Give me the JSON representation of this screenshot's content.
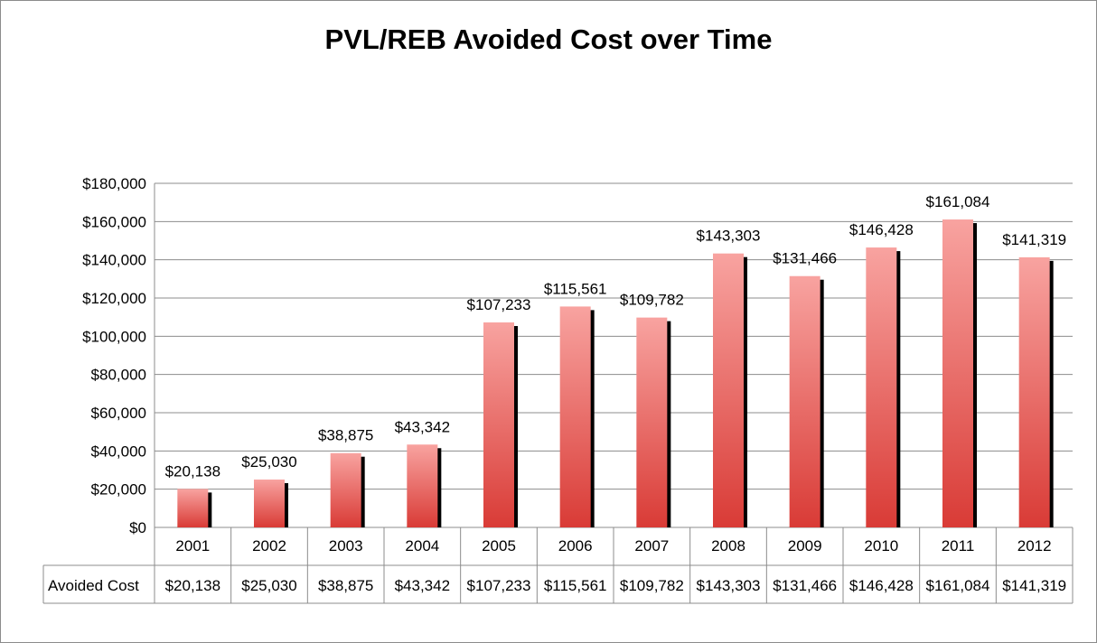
{
  "chart_data": {
    "type": "bar",
    "title": "PVL/REB Avoided Cost over Time",
    "categories": [
      "2001",
      "2002",
      "2003",
      "2004",
      "2005",
      "2006",
      "2007",
      "2008",
      "2009",
      "2010",
      "2011",
      "2012"
    ],
    "series": [
      {
        "name": "Avoided Cost",
        "values": [
          20138,
          25030,
          38875,
          43342,
          107233,
          115561,
          109782,
          143303,
          131466,
          146428,
          161084,
          141319
        ],
        "labels": [
          "$20,138",
          "$25,030",
          "$38,875",
          "$43,342",
          "$107,233",
          "$115,561",
          "$109,782",
          "$143,303",
          "$131,466",
          "$146,428",
          "$161,084",
          "$141,319"
        ]
      }
    ],
    "ylim": [
      0,
      180000
    ],
    "yticks": [
      0,
      20000,
      40000,
      60000,
      80000,
      100000,
      120000,
      140000,
      160000,
      180000
    ],
    "ytick_labels": [
      "$0",
      "$20,000",
      "$40,000",
      "$60,000",
      "$80,000",
      "$100,000",
      "$120,000",
      "$140,000",
      "$160,000",
      "$180,000"
    ],
    "xlabel": "",
    "ylabel": "",
    "grid": true,
    "data_table": true,
    "colors": {
      "bar_light": "#f8a3a0",
      "bar_dark": "#d93b36",
      "shadow": "#000000",
      "grid": "#8c8c8c"
    }
  }
}
